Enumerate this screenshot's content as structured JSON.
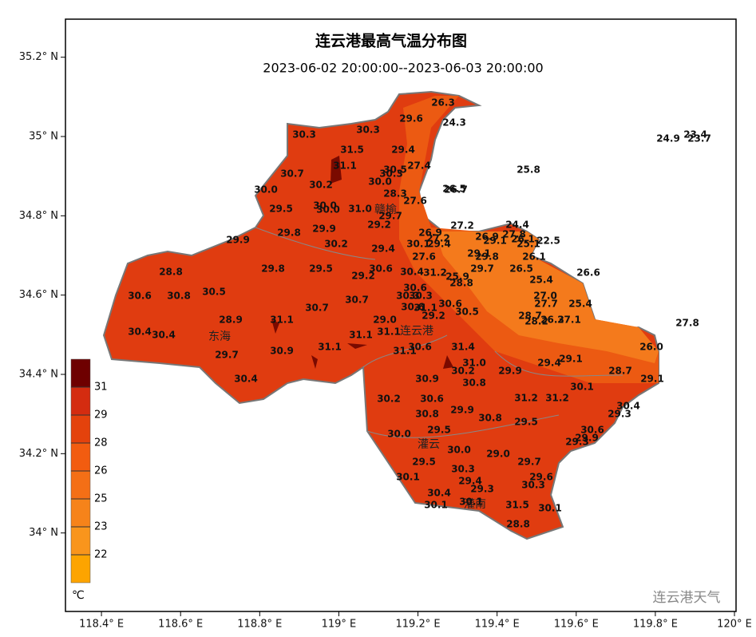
{
  "map": {
    "title": "连云港最高气温分布图",
    "subtitle": "2023-06-02 20:00:00--2023-06-03 20:00:00",
    "xlim": [
      118.309,
      120.004
    ],
    "ylim": [
      33.802,
      35.296
    ],
    "xticks": [
      {
        "value": 118.4,
        "label": "118.4° E"
      },
      {
        "value": 118.6,
        "label": "118.6° E"
      },
      {
        "value": 118.8,
        "label": "118.8° E"
      },
      {
        "value": 119,
        "label": "119° E"
      },
      {
        "value": 119.2,
        "label": "119.2° E"
      },
      {
        "value": 119.4,
        "label": "119.4° E"
      },
      {
        "value": 119.6,
        "label": "119.6° E"
      },
      {
        "value": 119.8,
        "label": "119.8° E"
      },
      {
        "value": 120,
        "label": "120° E"
      }
    ],
    "yticks": [
      {
        "value": 34,
        "label": "34° N"
      },
      {
        "value": 34.2,
        "label": "34.2° N"
      },
      {
        "value": 34.4,
        "label": "34.4° N"
      },
      {
        "value": 34.6,
        "label": "34.6° N"
      },
      {
        "value": 34.8,
        "label": "34.8° N"
      },
      {
        "value": 35,
        "label": "35° N"
      },
      {
        "value": 35.2,
        "label": "35.2° N"
      }
    ],
    "places": [
      "连云港",
      "赣榆",
      "东海",
      "灌云",
      "灌南"
    ],
    "readings": [
      "26.3",
      "30.3",
      "30.3",
      "29.6",
      "24.3",
      "31.5",
      "29.4",
      "31.1",
      "27.4",
      "30.7",
      "30.5",
      "30.3",
      "25.8",
      "30.2",
      "30.0",
      "30.0",
      "28.3",
      "26.5",
      "26.7",
      "27.6",
      "29.5",
      "30.0",
      "30.0",
      "31.0",
      "29.7",
      "29.2",
      "27.2",
      "29.8",
      "29.9",
      "24.4",
      "26.9",
      "27.2",
      "29.9",
      "30.2",
      "29.4",
      "30.1",
      "29.4",
      "26.9",
      "29.1",
      "27.8",
      "26.1",
      "25.1",
      "22.5",
      "27.6",
      "29.1",
      "29.8",
      "26.1",
      "28.8",
      "29.8",
      "29.5",
      "30.6",
      "29.2",
      "30.4",
      "31.2",
      "25.9",
      "28.8",
      "29.7",
      "26.5",
      "26.6",
      "25.4",
      "30.6",
      "30.5",
      "30.6",
      "30.8",
      "30.3",
      "30.3",
      "27.0",
      "30.7",
      "30.7",
      "30.6",
      "31.1",
      "30.6",
      "30.5",
      "27.7",
      "25.4",
      "29.2",
      "28.9",
      "31.1",
      "29.0",
      "28.7",
      "28.2",
      "26.3",
      "27.1",
      "27.8",
      "30.4",
      "30.4",
      "31.1",
      "31.1",
      "26.0",
      "29.7",
      "30.9",
      "31.1",
      "31.1",
      "30.6",
      "31.4",
      "31.0",
      "30.2",
      "29.1",
      "29.4",
      "29.9",
      "28.7",
      "30.4",
      "30.9",
      "30.8",
      "29.1",
      "30.1",
      "30.2",
      "30.6",
      "31.2",
      "31.2",
      "30.4",
      "29.3",
      "30.8",
      "29.9",
      "30.8",
      "29.5",
      "30.6",
      "30.0",
      "29.5",
      "29.9",
      "29.3",
      "30.0",
      "29.0",
      "29.5",
      "29.7",
      "30.3",
      "30.1",
      "29.6",
      "29.4",
      "29.3",
      "30.3",
      "30.4",
      "30.1",
      "30.1",
      "31.5",
      "30.1",
      "28.8",
      "24.9",
      "23.4",
      "23.7"
    ],
    "legend": {
      "unit": "℃",
      "levels": [
        31,
        29,
        28,
        26,
        25,
        23,
        22
      ],
      "colors": [
        "#6e0000",
        "#d42c10",
        "#e4420c",
        "#f25c10",
        "#f46f16",
        "#f6831a",
        "#f9951c",
        "#fda400"
      ]
    },
    "watermark": "连云港天气"
  }
}
